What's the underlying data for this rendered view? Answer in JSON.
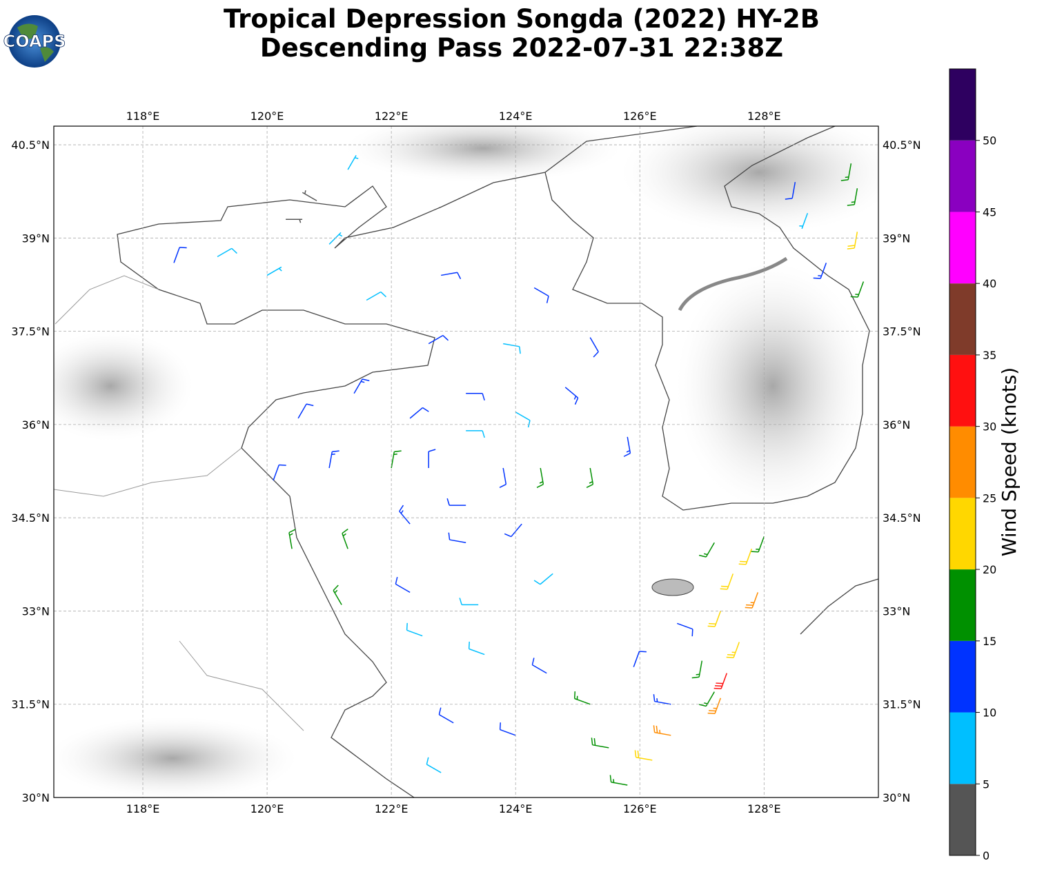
{
  "chart_data": {
    "type": "barbs",
    "logo": "COAPS",
    "title": "Tropical Depression Songda (2022) HY-2B",
    "subtitle": "Descending Pass 2022-07-31 22:38Z",
    "xlim": [
      116.567,
      129.84
    ],
    "ylim": [
      30,
      40.8
    ],
    "xticks": [
      {
        "value": 118,
        "label": "118°E"
      },
      {
        "value": 120,
        "label": "120°E"
      },
      {
        "value": 122,
        "label": "122°E"
      },
      {
        "value": 124,
        "label": "124°E"
      },
      {
        "value": 126,
        "label": "126°E"
      },
      {
        "value": 128,
        "label": "128°E"
      }
    ],
    "yticks": [
      {
        "value": 30,
        "label": "30°N"
      },
      {
        "value": 31.5,
        "label": "31.5°N"
      },
      {
        "value": 33,
        "label": "33°N"
      },
      {
        "value": 34.5,
        "label": "34.5°N"
      },
      {
        "value": 36,
        "label": "36°N"
      },
      {
        "value": 37.5,
        "label": "37.5°N"
      },
      {
        "value": 39,
        "label": "39°N"
      },
      {
        "value": 40.5,
        "label": "40.5°N"
      }
    ],
    "grid": true,
    "barbs": [
      {
        "lon": 123.8,
        "lat": 35.3,
        "speed": 12,
        "dir": 170
      },
      {
        "lon": 123.2,
        "lat": 35.9,
        "speed": 8,
        "dir": 90
      },
      {
        "lon": 122.6,
        "lat": 35.3,
        "speed": 12,
        "dir": 0
      },
      {
        "lon": 123.2,
        "lat": 34.7,
        "speed": 10,
        "dir": 270
      },
      {
        "lon": 124.4,
        "lat": 35.3,
        "speed": 16,
        "dir": 170
      },
      {
        "lon": 124.0,
        "lat": 36.2,
        "speed": 8,
        "dir": 120
      },
      {
        "lon": 123.2,
        "lat": 36.5,
        "speed": 10,
        "dir": 90
      },
      {
        "lon": 122.3,
        "lat": 36.1,
        "speed": 12,
        "dir": 50
      },
      {
        "lon": 122.0,
        "lat": 35.3,
        "speed": 17,
        "dir": 10
      },
      {
        "lon": 122.3,
        "lat": 34.4,
        "speed": 14,
        "dir": 320
      },
      {
        "lon": 123.2,
        "lat": 34.1,
        "speed": 12,
        "dir": 280
      },
      {
        "lon": 124.1,
        "lat": 34.4,
        "speed": 10,
        "dir": 220
      },
      {
        "lon": 125.2,
        "lat": 35.3,
        "speed": 16,
        "dir": 170
      },
      {
        "lon": 124.8,
        "lat": 36.6,
        "speed": 14,
        "dir": 130
      },
      {
        "lon": 123.8,
        "lat": 37.3,
        "speed": 8,
        "dir": 100
      },
      {
        "lon": 122.6,
        "lat": 37.3,
        "speed": 12,
        "dir": 60
      },
      {
        "lon": 121.4,
        "lat": 36.5,
        "speed": 13,
        "dir": 30
      },
      {
        "lon": 121.0,
        "lat": 35.3,
        "speed": 13,
        "dir": 10
      },
      {
        "lon": 121.3,
        "lat": 34.0,
        "speed": 17,
        "dir": 340
      },
      {
        "lon": 122.3,
        "lat": 33.3,
        "speed": 12,
        "dir": 300
      },
      {
        "lon": 123.4,
        "lat": 33.1,
        "speed": 8,
        "dir": 270
      },
      {
        "lon": 124.6,
        "lat": 33.6,
        "speed": 9,
        "dir": 230
      },
      {
        "lon": 125.8,
        "lat": 35.8,
        "speed": 13,
        "dir": 170
      },
      {
        "lon": 125.2,
        "lat": 37.4,
        "speed": 12,
        "dir": 150
      },
      {
        "lon": 124.3,
        "lat": 38.2,
        "speed": 12,
        "dir": 120
      },
      {
        "lon": 122.8,
        "lat": 38.4,
        "speed": 12,
        "dir": 80
      },
      {
        "lon": 121.6,
        "lat": 38.0,
        "speed": 8,
        "dir": 60
      },
      {
        "lon": 120.1,
        "lat": 35.1,
        "speed": 12,
        "dir": 20
      },
      {
        "lon": 120.5,
        "lat": 36.1,
        "speed": 12,
        "dir": 30
      },
      {
        "lon": 120.4,
        "lat": 34.0,
        "speed": 16,
        "dir": 350
      },
      {
        "lon": 121.2,
        "lat": 33.1,
        "speed": 17,
        "dir": 330
      },
      {
        "lon": 120.0,
        "lat": 38.4,
        "speed": 7,
        "dir": 60
      },
      {
        "lon": 121.0,
        "lat": 38.9,
        "speed": 7,
        "dir": 45
      },
      {
        "lon": 120.3,
        "lat": 39.3,
        "speed": 3,
        "dir": 90
      },
      {
        "lon": 121.3,
        "lat": 40.1,
        "speed": 7,
        "dir": 30
      },
      {
        "lon": 119.2,
        "lat": 38.7,
        "speed": 8,
        "dir": 60
      },
      {
        "lon": 118.5,
        "lat": 38.6,
        "speed": 12,
        "dir": 20
      },
      {
        "lon": 120.8,
        "lat": 39.6,
        "speed": 3,
        "dir": 300
      },
      {
        "lon": 122.5,
        "lat": 32.6,
        "speed": 8,
        "dir": 290
      },
      {
        "lon": 123.5,
        "lat": 32.3,
        "speed": 9,
        "dir": 290
      },
      {
        "lon": 124.5,
        "lat": 32.0,
        "speed": 12,
        "dir": 300
      },
      {
        "lon": 125.2,
        "lat": 31.5,
        "speed": 16,
        "dir": 290
      },
      {
        "lon": 124.0,
        "lat": 31.0,
        "speed": 12,
        "dir": 290
      },
      {
        "lon": 123.0,
        "lat": 31.2,
        "speed": 11,
        "dir": 300
      },
      {
        "lon": 122.8,
        "lat": 30.4,
        "speed": 8,
        "dir": 300
      },
      {
        "lon": 125.5,
        "lat": 30.8,
        "speed": 18,
        "dir": 280
      },
      {
        "lon": 126.2,
        "lat": 30.6,
        "speed": 22,
        "dir": 280
      },
      {
        "lon": 126.5,
        "lat": 31.0,
        "speed": 27,
        "dir": 280
      },
      {
        "lon": 125.8,
        "lat": 30.2,
        "speed": 17,
        "dir": 280
      },
      {
        "lon": 127.0,
        "lat": 32.2,
        "speed": 17,
        "dir": 190
      },
      {
        "lon": 126.6,
        "lat": 32.8,
        "speed": 12,
        "dir": 110
      },
      {
        "lon": 125.9,
        "lat": 32.1,
        "speed": 12,
        "dir": 20
      },
      {
        "lon": 126.5,
        "lat": 31.5,
        "speed": 13,
        "dir": 280
      },
      {
        "lon": 127.2,
        "lat": 31.7,
        "speed": 16,
        "dir": 210
      },
      {
        "lon": 127.4,
        "lat": 32.0,
        "speed": 32,
        "dir": 200
      },
      {
        "lon": 127.6,
        "lat": 32.5,
        "speed": 24,
        "dir": 200
      },
      {
        "lon": 127.3,
        "lat": 33.0,
        "speed": 22,
        "dir": 200
      },
      {
        "lon": 127.9,
        "lat": 33.3,
        "speed": 27,
        "dir": 200
      },
      {
        "lon": 127.8,
        "lat": 34.0,
        "speed": 20,
        "dir": 200
      },
      {
        "lon": 127.5,
        "lat": 33.6,
        "speed": 22,
        "dir": 200
      },
      {
        "lon": 127.2,
        "lat": 34.1,
        "speed": 17,
        "dir": 210
      },
      {
        "lon": 128.0,
        "lat": 34.2,
        "speed": 17,
        "dir": 200
      },
      {
        "lon": 127.3,
        "lat": 31.6,
        "speed": 25,
        "dir": 200
      },
      {
        "lon": 128.7,
        "lat": 39.4,
        "speed": 7,
        "dir": 200
      },
      {
        "lon": 129.5,
        "lat": 39.8,
        "speed": 17,
        "dir": 190
      },
      {
        "lon": 129.6,
        "lat": 38.3,
        "speed": 17,
        "dir": 200
      },
      {
        "lon": 129.0,
        "lat": 38.6,
        "speed": 14,
        "dir": 200
      },
      {
        "lon": 129.4,
        "lat": 40.2,
        "speed": 17,
        "dir": 190
      },
      {
        "lon": 128.5,
        "lat": 39.9,
        "speed": 12,
        "dir": 190
      },
      {
        "lon": 129.5,
        "lat": 39.1,
        "speed": 22,
        "dir": 190
      }
    ],
    "colorbar": {
      "label": "Wind Speed (knots)",
      "lim": [
        0,
        55
      ],
      "ticks": [
        0,
        5,
        10,
        15,
        20,
        25,
        30,
        35,
        40,
        45,
        50
      ],
      "boundaries": [
        0,
        5,
        10,
        15,
        20,
        25,
        30,
        35,
        40,
        45,
        50,
        55
      ],
      "colors": [
        "#555555",
        "#00bfff",
        "#0033ff",
        "#009000",
        "#ffd700",
        "#ff8c00",
        "#ff1010",
        "#7f3b2a",
        "#ff00ff",
        "#8a00c0",
        "#2e0060"
      ]
    }
  }
}
